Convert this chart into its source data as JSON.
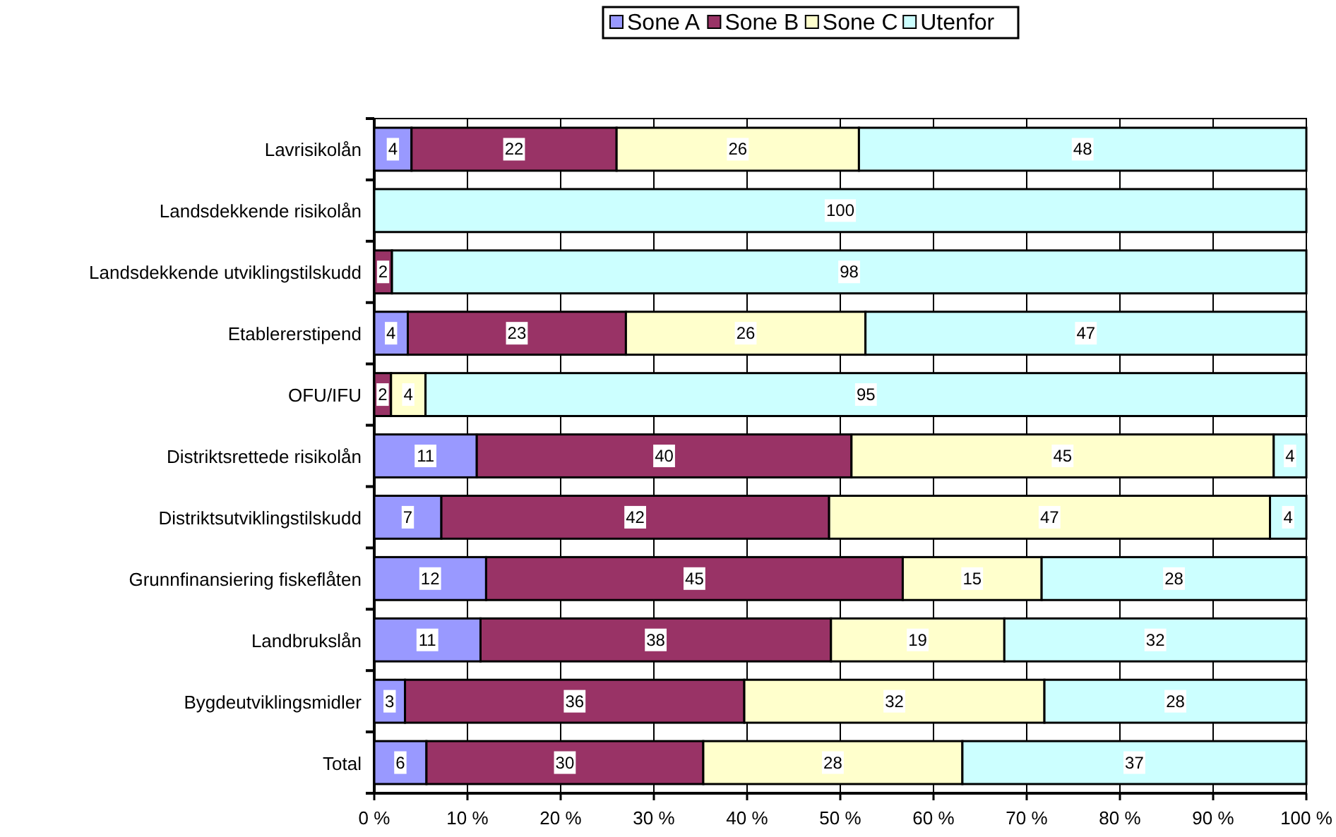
{
  "chart_data": {
    "type": "bar",
    "orientation": "horizontal",
    "stacked": true,
    "categories": [
      "Lavrisikolån",
      "Landsdekkende risikolån",
      "Landsdekkende utviklingstilskudd",
      "Etablererstipend",
      "OFU/IFU",
      "Distriktsrettede risikolån",
      "Distriktsutviklingstilskudd",
      "Grunnfinansiering fiskeflåten",
      "Landbrukslån",
      "Bygdeutviklingsmidler",
      "Total"
    ],
    "series": [
      {
        "name": "Sone A",
        "color": "#9999ff",
        "values": [
          4,
          0,
          0,
          3.6,
          0,
          11,
          7.2,
          12,
          11.4,
          3.3,
          5.6
        ],
        "value_labels": [
          "4",
          null,
          null,
          "4",
          null,
          "11",
          "7",
          "12",
          "11",
          "3",
          "6"
        ]
      },
      {
        "name": "Sone B",
        "color": "#993366",
        "values": [
          22,
          0,
          1.9,
          23.4,
          1.8,
          40.2,
          41.6,
          44.7,
          37.6,
          36.4,
          29.7
        ],
        "value_labels": [
          "22",
          null,
          "2",
          "23",
          "2",
          "40",
          "42",
          "45",
          "38",
          "36",
          "30"
        ]
      },
      {
        "name": "Sone C",
        "color": "#ffffcc",
        "values": [
          26,
          0,
          0,
          25.7,
          3.7,
          45.3,
          47.3,
          14.9,
          18.6,
          32.2,
          27.8
        ],
        "value_labels": [
          "26",
          null,
          null,
          "26",
          "4",
          "45",
          "47",
          "15",
          "19",
          "32",
          "28"
        ]
      },
      {
        "name": "Utenfor",
        "color": "#ccffff",
        "values": [
          48,
          100,
          98.1,
          47.3,
          94.5,
          3.5,
          3.9,
          28.4,
          32.4,
          28.1,
          36.9
        ],
        "value_labels": [
          "48",
          "100",
          "98",
          "47",
          "95",
          "4",
          "4",
          "28",
          "32",
          "28",
          "37"
        ]
      }
    ],
    "xlim": [
      0,
      100
    ],
    "xticks": [
      {
        "value": 0,
        "label": "0 %"
      },
      {
        "value": 10,
        "label": "10 %"
      },
      {
        "value": 20,
        "label": "20 %"
      },
      {
        "value": 30,
        "label": "30 %"
      },
      {
        "value": 40,
        "label": "40 %"
      },
      {
        "value": 50,
        "label": "50 %"
      },
      {
        "value": 60,
        "label": "60 %"
      },
      {
        "value": 70,
        "label": "70 %"
      },
      {
        "value": 80,
        "label": "80 %"
      },
      {
        "value": 90,
        "label": "90 %"
      },
      {
        "value": 100,
        "label": "100 %"
      }
    ],
    "grid": "x",
    "legend": "top"
  }
}
